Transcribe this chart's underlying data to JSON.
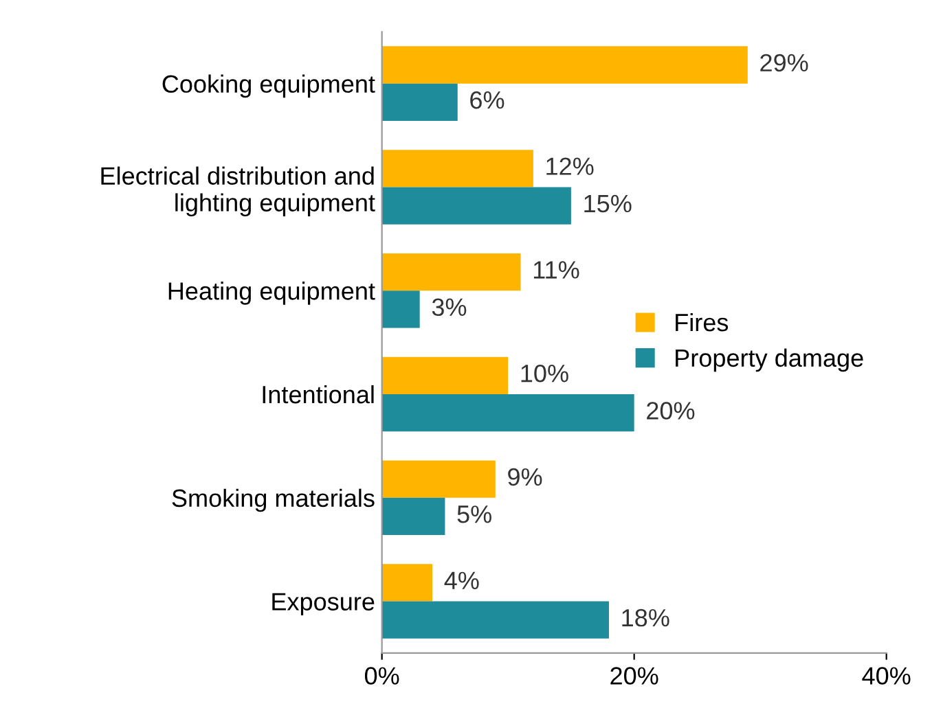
{
  "chart_data": {
    "type": "bar",
    "orientation": "horizontal",
    "categories": [
      "Cooking equipment",
      "Electrical distribution and\nlighting equipment",
      "Heating equipment",
      "Intentional",
      "Smoking materials",
      "Exposure"
    ],
    "series": [
      {
        "name": "Fires",
        "color": "#ffb400",
        "values": [
          29,
          12,
          11,
          10,
          9,
          4
        ],
        "value_labels": [
          "29%",
          "12%",
          "11%",
          "10%",
          "9%",
          "4%"
        ]
      },
      {
        "name": "Property damage",
        "color": "#1f8c9c",
        "values": [
          6,
          15,
          3,
          20,
          5,
          18
        ],
        "value_labels": [
          "6%",
          "15%",
          "3%",
          "20%",
          "5%",
          "18%"
        ]
      }
    ],
    "xlim": [
      0,
      40
    ],
    "xticks": [
      {
        "value": 0,
        "label": "0%"
      },
      {
        "value": 20,
        "label": "20%"
      },
      {
        "value": 40,
        "label": "40%"
      }
    ],
    "legend": "center right",
    "grid": false
  }
}
